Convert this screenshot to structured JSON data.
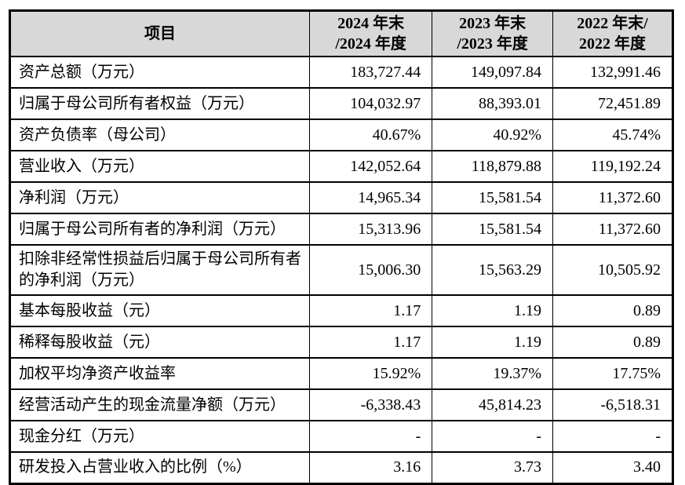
{
  "table": {
    "header": {
      "item_label": "项目",
      "col2024_line1": "2024 年末",
      "col2024_line2": "/2024 年度",
      "col2023_line1": "2023 年末",
      "col2023_line2": "/2023 年度",
      "col2022_line1": "2022 年末/",
      "col2022_line2": "2022 年度"
    },
    "rows": [
      {
        "label": "资产总额（万元）",
        "v2024": "183,727.44",
        "v2023": "149,097.84",
        "v2022": "132,991.46"
      },
      {
        "label": "归属于母公司所有者权益（万元）",
        "v2024": "104,032.97",
        "v2023": "88,393.01",
        "v2022": "72,451.89"
      },
      {
        "label": "资产负债率（母公司）",
        "v2024": "40.67%",
        "v2023": "40.92%",
        "v2022": "45.74%"
      },
      {
        "label": "营业收入（万元）",
        "v2024": "142,052.64",
        "v2023": "118,879.88",
        "v2022": "119,192.24"
      },
      {
        "label": "净利润（万元）",
        "v2024": "14,965.34",
        "v2023": "15,581.54",
        "v2022": "11,372.60"
      },
      {
        "label": "归属于母公司所有者的净利润（万元）",
        "v2024": "15,313.96",
        "v2023": "15,581.54",
        "v2022": "11,372.60"
      },
      {
        "label": "扣除非经常性损益后归属于母公司所有者的净利润（万元）",
        "v2024": "15,006.30",
        "v2023": "15,563.29",
        "v2022": "10,505.92"
      },
      {
        "label": "基本每股收益（元）",
        "v2024": "1.17",
        "v2023": "1.19",
        "v2022": "0.89"
      },
      {
        "label": "稀释每股收益（元）",
        "v2024": "1.17",
        "v2023": "1.19",
        "v2022": "0.89"
      },
      {
        "label": "加权平均净资产收益率",
        "v2024": "15.92%",
        "v2023": "19.37%",
        "v2022": "17.75%"
      },
      {
        "label": "经营活动产生的现金流量净额（万元）",
        "v2024": "-6,338.43",
        "v2023": "45,814.23",
        "v2022": "-6,518.31"
      },
      {
        "label": "现金分红（万元）",
        "v2024": "-",
        "v2023": "-",
        "v2022": "-"
      },
      {
        "label": "研发投入占营业收入的比例（%）",
        "v2024": "3.16",
        "v2023": "3.73",
        "v2022": "3.40"
      }
    ],
    "colors": {
      "header_bg": "#d8d8d8",
      "border": "#000000",
      "text": "#000000",
      "page_bg": "#ffffff"
    }
  }
}
